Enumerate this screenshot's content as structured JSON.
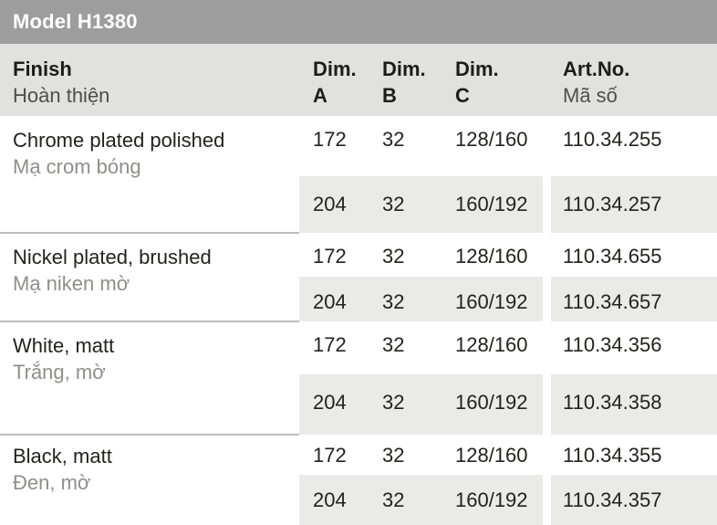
{
  "title": "Model H1380",
  "colors": {
    "title_bar_bg": "#9d9d9d",
    "title_text": "#ffffff",
    "header_bg": "#e1e1df",
    "shaded_row_bg": "#eaeae8",
    "primary_text": "#222220",
    "secondary_text": "#8e8e8c"
  },
  "table": {
    "headers": {
      "finish": {
        "en": "Finish",
        "vn": "Hoàn thiện"
      },
      "dim_a": {
        "line1": "Dim.",
        "line2": "A"
      },
      "dim_b": {
        "line1": "Dim.",
        "line2": "B"
      },
      "dim_c": {
        "line1": "Dim.",
        "line2": "C"
      },
      "art_no": {
        "en": "Art.No.",
        "vn": "Mã số"
      }
    },
    "rows": [
      {
        "finish_en": "Chrome plated polished",
        "finish_vn": "Mạ crom bóng",
        "variants": [
          {
            "dim_a": "172",
            "dim_b": "32",
            "dim_c": "128/160",
            "art_no": "110.34.255"
          },
          {
            "dim_a": "204",
            "dim_b": "32",
            "dim_c": "160/192",
            "art_no": "110.34.257"
          }
        ]
      },
      {
        "finish_en": "Nickel plated, brushed",
        "finish_vn": "Mạ niken mờ",
        "variants": [
          {
            "dim_a": "172",
            "dim_b": "32",
            "dim_c": "128/160",
            "art_no": "110.34.655"
          },
          {
            "dim_a": "204",
            "dim_b": "32",
            "dim_c": "160/192",
            "art_no": "110.34.657"
          }
        ]
      },
      {
        "finish_en": "White, matt",
        "finish_vn": "Trắng, mờ",
        "variants": [
          {
            "dim_a": "172",
            "dim_b": "32",
            "dim_c": "128/160",
            "art_no": "110.34.356"
          },
          {
            "dim_a": "204",
            "dim_b": "32",
            "dim_c": "160/192",
            "art_no": "110.34.358"
          }
        ]
      },
      {
        "finish_en": "Black, matt",
        "finish_vn": "Đen, mờ",
        "variants": [
          {
            "dim_a": "172",
            "dim_b": "32",
            "dim_c": "128/160",
            "art_no": "110.34.355"
          },
          {
            "dim_a": "204",
            "dim_b": "32",
            "dim_c": "160/192",
            "art_no": "110.34.357"
          }
        ]
      }
    ]
  }
}
